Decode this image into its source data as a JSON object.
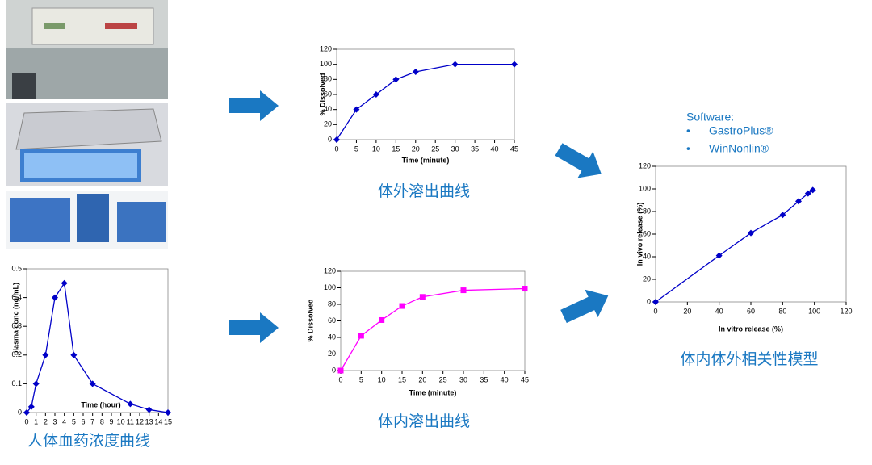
{
  "chart_data": [
    {
      "type": "line",
      "caption": "体外溶出曲线",
      "x_label": "Time (minute)",
      "y_label": "% Dissolved",
      "x": [
        0,
        5,
        10,
        15,
        20,
        30,
        45
      ],
      "values": [
        0,
        40,
        60,
        80,
        90,
        100,
        100
      ],
      "color": "#0000c8",
      "marker": "diamond",
      "xlim": [
        0,
        45
      ],
      "xticks": [
        0,
        5,
        10,
        15,
        20,
        25,
        30,
        35,
        40,
        45
      ],
      "ylim": [
        0,
        120
      ],
      "yticks": [
        0,
        20,
        40,
        60,
        80,
        100,
        120
      ]
    },
    {
      "type": "line",
      "caption": "体内溶出曲线",
      "x_label": "Time (minute)",
      "y_label": "% Dissolved",
      "x": [
        0,
        5,
        10,
        15,
        20,
        30,
        45
      ],
      "values": [
        0,
        42,
        61,
        78,
        89,
        97,
        99
      ],
      "color": "#ff00ff",
      "marker": "square",
      "xlim": [
        0,
        45
      ],
      "xticks": [
        0,
        5,
        10,
        15,
        20,
        25,
        30,
        35,
        40,
        45
      ],
      "ylim": [
        0,
        120
      ],
      "yticks": [
        0,
        20,
        40,
        60,
        80,
        100,
        120
      ]
    },
    {
      "type": "line",
      "caption": "体内体外相关性模型",
      "x_label": "In vitro release (%)",
      "y_label": "In vivo release (%)",
      "x": [
        0,
        40,
        60,
        80,
        90,
        96,
        99
      ],
      "values": [
        0,
        41,
        61,
        77,
        89,
        96,
        99
      ],
      "color": "#0000c8",
      "marker": "diamond",
      "xlim": [
        0,
        120
      ],
      "xticks": [
        0,
        20,
        40,
        60,
        80,
        100,
        120
      ],
      "ylim": [
        0,
        120
      ],
      "yticks": [
        0,
        20,
        40,
        60,
        80,
        100,
        120
      ]
    },
    {
      "type": "line",
      "caption": "人体血药浓度曲线",
      "x_label": "Time (hour)",
      "y_label": "plasma conc (ng/mL)",
      "x": [
        0,
        0.5,
        1,
        2,
        3,
        4,
        5,
        7,
        11,
        13,
        15
      ],
      "values": [
        0,
        0.02,
        0.1,
        0.2,
        0.4,
        0.45,
        0.2,
        0.1,
        0.03,
        0.01,
        0
      ],
      "color": "#0000c8",
      "marker": "diamond",
      "xlim": [
        0,
        15
      ],
      "xticks": [
        0,
        1,
        2,
        3,
        4,
        5,
        6,
        7,
        8,
        9,
        10,
        11,
        12,
        13,
        14,
        15
      ],
      "ylim": [
        0,
        0.5
      ],
      "yticks": [
        0,
        0.1,
        0.2,
        0.3,
        0.4,
        0.5
      ]
    }
  ],
  "software": {
    "title": "Software:",
    "items": [
      "GastroPlus®",
      "WinNonlin®"
    ]
  }
}
